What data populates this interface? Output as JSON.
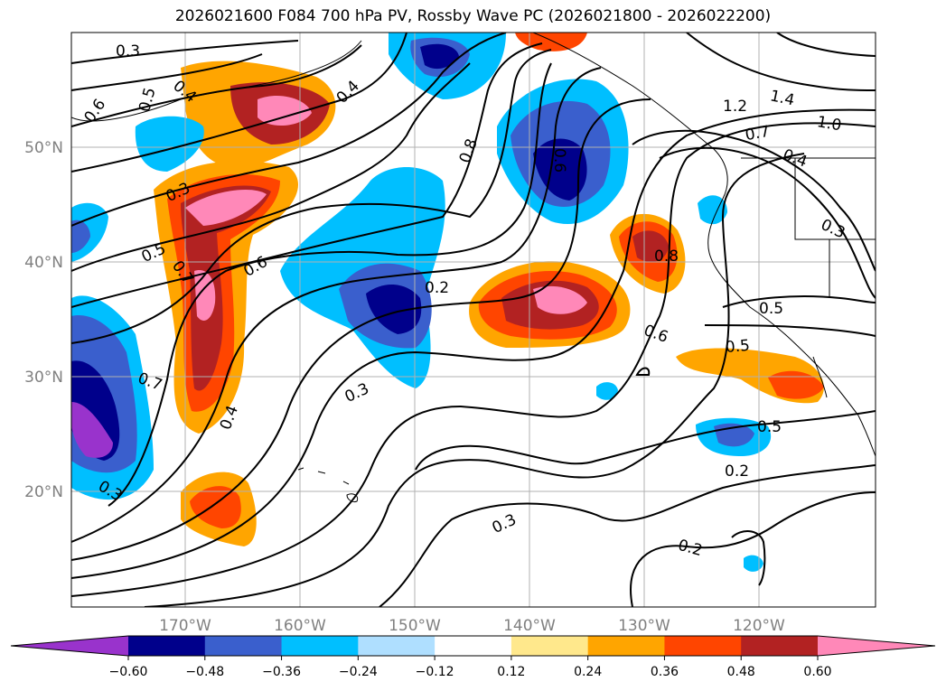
{
  "title": "2026021600 F084 700 hPa PV, Rossby Wave PC (2026021800 - 2026022200)",
  "map": {
    "lon_labels": [
      "170°W",
      "160°W",
      "150°W",
      "140°W",
      "130°W",
      "120°W"
    ],
    "lat_labels": [
      "50°N",
      "40°N",
      "30°N",
      "20°N"
    ],
    "contour_labels": [
      "0.3",
      "0.6",
      "0.5",
      "0.4",
      "0.4",
      "0.8",
      "0.6",
      "1.2",
      "1.4",
      "1.0",
      "0.7",
      "0.4",
      "0.3",
      "0.3",
      "0.5",
      "0.7",
      "0.6",
      "0.2",
      "0.8",
      "0.5",
      "0.6",
      "0.5",
      "0.7",
      "0.3",
      "0.4",
      "0.5",
      "0.2",
      "0.3",
      "0.3",
      "0.2"
    ]
  },
  "colorbar": {
    "ticks": [
      "−0.60",
      "−0.48",
      "−0.36",
      "−0.24",
      "−0.12",
      "0.12",
      "0.24",
      "0.36",
      "0.48",
      "0.60"
    ],
    "colors": [
      "#9933cc",
      "#00008b",
      "#3a5fcd",
      "#00bfff",
      "#afdfff",
      "#ffffff",
      "#ffe88c",
      "#ffa500",
      "#ff4500",
      "#b22222",
      "#ff88b8"
    ]
  },
  "chart_data": {
    "type": "heatmap",
    "title": "2026021600 F084 700 hPa PV, Rossby Wave PC (2026021800 - 2026022200)",
    "xlabel": "",
    "ylabel": "",
    "x_ticks": [
      "170°W",
      "160°W",
      "150°W",
      "140°W",
      "130°W",
      "120°W"
    ],
    "y_ticks": [
      "50°N",
      "40°N",
      "30°N",
      "20°N"
    ],
    "levels": [
      -0.6,
      -0.48,
      -0.36,
      -0.24,
      -0.12,
      0.12,
      0.24,
      0.36,
      0.48,
      0.6
    ],
    "grid": true,
    "legend": "bottom colorbar"
  }
}
